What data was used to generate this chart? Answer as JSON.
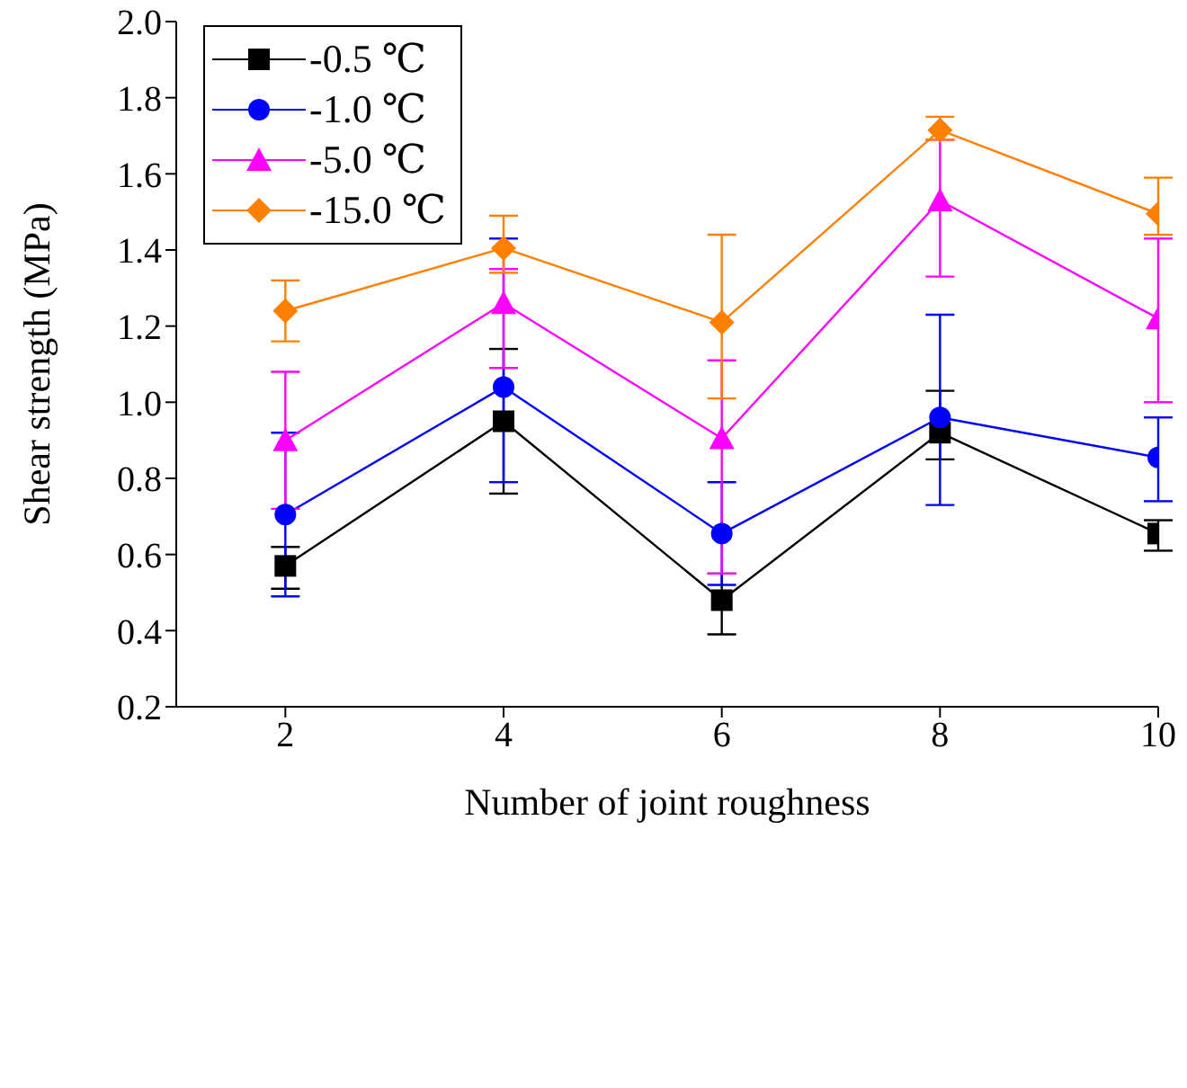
{
  "chart_data": {
    "type": "line",
    "xlabel": "Number of joint roughness",
    "ylabel": "Shear strength (MPa)",
    "x": [
      2,
      4,
      6,
      8,
      10
    ],
    "xlim": [
      1,
      10
    ],
    "xticks": [
      2,
      4,
      6,
      8,
      10
    ],
    "ylim": [
      0.2,
      2.0
    ],
    "yticks": [
      {
        "value": 0.2,
        "label": "0.2"
      },
      {
        "value": 0.4,
        "label": "0.4"
      },
      {
        "value": 0.6,
        "label": "0.6"
      },
      {
        "value": 0.8,
        "label": "0.8"
      },
      {
        "value": 1.0,
        "label": "1.0"
      },
      {
        "value": 1.2,
        "label": "1.2"
      },
      {
        "value": 1.4,
        "label": "1.4"
      },
      {
        "value": 1.6,
        "label": "1.6"
      },
      {
        "value": 1.8,
        "label": "1.8"
      },
      {
        "value": 2.0,
        "label": "2.0"
      }
    ],
    "legend": "top left",
    "grid": false,
    "series": [
      {
        "name": "-0.5 ℃",
        "color": "#000000",
        "marker": "square",
        "values": [
          0.57,
          0.95,
          0.48,
          0.92,
          0.655
        ],
        "errors": [
          [
            0.51,
            0.62
          ],
          [
            0.76,
            1.14
          ],
          [
            0.39,
            0.55
          ],
          [
            0.85,
            1.03
          ],
          [
            0.61,
            0.69
          ]
        ]
      },
      {
        "name": "-1.0 ℃",
        "color": "#0000ff",
        "marker": "circle",
        "values": [
          0.705,
          1.04,
          0.655,
          0.96,
          0.855
        ],
        "errors": [
          [
            0.49,
            0.92
          ],
          [
            0.79,
            1.43
          ],
          [
            0.52,
            0.79
          ],
          [
            0.73,
            1.23
          ],
          [
            0.74,
            0.96
          ]
        ]
      },
      {
        "name": "-5.0 ℃",
        "color": "#ff00ff",
        "marker": "triangle",
        "values": [
          0.9,
          1.26,
          0.905,
          1.53,
          1.22
        ],
        "errors": [
          [
            0.72,
            1.08
          ],
          [
            1.09,
            1.35
          ],
          [
            0.55,
            1.11
          ],
          [
            1.33,
            1.69
          ],
          [
            1.0,
            1.43
          ]
        ]
      },
      {
        "name": "-15.0 ℃",
        "color": "#ff8000",
        "marker": "diamond",
        "values": [
          1.24,
          1.405,
          1.21,
          1.715,
          1.495
        ],
        "errors": [
          [
            1.16,
            1.32
          ],
          [
            1.34,
            1.49
          ],
          [
            1.01,
            1.44
          ],
          [
            1.69,
            1.75
          ],
          [
            1.44,
            1.59
          ]
        ]
      }
    ]
  }
}
